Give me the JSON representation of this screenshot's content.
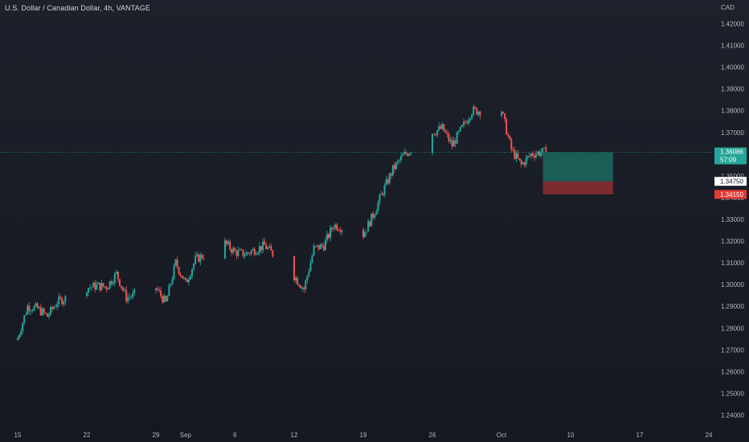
{
  "header": {
    "title": "U.S. Dollar / Canadian Dollar, 4h, VANTAGE"
  },
  "price_scale": {
    "currency": "CAD"
  },
  "tags": {
    "last_price": "1.36086",
    "countdown": "57:09",
    "target_price": "1.34750",
    "stop_price": "1.34150"
  },
  "colors": {
    "background": "#1b1e27",
    "up": "#26a69a",
    "down": "#ef5350",
    "profit_zone": "#1a5e57",
    "loss_zone": "#7d2b30",
    "last_price_tag": "#26a69a",
    "stop_tag": "#e53935"
  },
  "chart_data": {
    "type": "candlestick",
    "title": "U.S. Dollar / Canadian Dollar, 4h, VANTAGE",
    "y_unit": "CAD",
    "ylim": [
      1.235,
      1.425
    ],
    "y_ticks": [
      "1.42000",
      "1.41000",
      "1.40000",
      "1.39000",
      "1.38000",
      "1.37000",
      "1.36000",
      "1.35000",
      "1.34000",
      "1.33000",
      "1.32000",
      "1.31000",
      "1.30000",
      "1.29000",
      "1.28000",
      "1.27000",
      "1.26000",
      "1.25000",
      "1.24000"
    ],
    "x_ticks": [
      {
        "label": "15",
        "date": "2022-08-15"
      },
      {
        "label": "22",
        "date": "2022-08-22"
      },
      {
        "label": "29",
        "date": "2022-08-29"
      },
      {
        "label": "Sep",
        "date": "2022-09-01"
      },
      {
        "label": "6",
        "date": "2022-09-06"
      },
      {
        "label": "12",
        "date": "2022-09-12"
      },
      {
        "label": "19",
        "date": "2022-09-19"
      },
      {
        "label": "26",
        "date": "2022-09-26"
      },
      {
        "label": "Oct",
        "date": "2022-10-03"
      },
      {
        "label": "10",
        "date": "2022-10-10"
      },
      {
        "label": "17",
        "date": "2022-10-17"
      },
      {
        "label": "24",
        "date": "2022-10-24"
      }
    ],
    "series": [
      {
        "date": "2022-08-15",
        "close": 1.2755
      },
      {
        "date": "2022-08-16",
        "close": 1.29
      },
      {
        "date": "2022-08-17",
        "close": 1.289
      },
      {
        "date": "2022-08-18",
        "close": 1.2855
      },
      {
        "date": "2022-08-19",
        "close": 1.292
      },
      {
        "date": "2022-08-22",
        "close": 1.2985
      },
      {
        "date": "2022-08-23",
        "close": 1.2995
      },
      {
        "date": "2022-08-24",
        "close": 1.299
      },
      {
        "date": "2022-08-25",
        "close": 1.305
      },
      {
        "date": "2022-08-26",
        "close": 1.294
      },
      {
        "date": "2022-08-29",
        "close": 1.2985
      },
      {
        "date": "2022-08-30",
        "close": 1.2915
      },
      {
        "date": "2022-08-31",
        "close": 1.31
      },
      {
        "date": "2022-09-01",
        "close": 1.3005
      },
      {
        "date": "2022-09-02",
        "close": 1.3115
      },
      {
        "date": "2022-09-05",
        "close": 1.319
      },
      {
        "date": "2022-09-06",
        "close": 1.315
      },
      {
        "date": "2022-09-07",
        "close": 1.314
      },
      {
        "date": "2022-09-08",
        "close": 1.316
      },
      {
        "date": "2022-09-09",
        "close": 1.318
      },
      {
        "date": "2022-09-12",
        "close": 1.304
      },
      {
        "date": "2022-09-13",
        "close": 1.298
      },
      {
        "date": "2022-09-14",
        "close": 1.3165
      },
      {
        "date": "2022-09-15",
        "close": 1.318
      },
      {
        "date": "2022-09-16",
        "close": 1.3275
      },
      {
        "date": "2022-09-19",
        "close": 1.323
      },
      {
        "date": "2022-09-20",
        "close": 1.332
      },
      {
        "date": "2022-09-21",
        "close": 1.343
      },
      {
        "date": "2022-09-22",
        "close": 1.353
      },
      {
        "date": "2022-09-23",
        "close": 1.359
      },
      {
        "date": "2022-09-26",
        "close": 1.37
      },
      {
        "date": "2022-09-27",
        "close": 1.372
      },
      {
        "date": "2022-09-28",
        "close": 1.364
      },
      {
        "date": "2022-09-29",
        "close": 1.372
      },
      {
        "date": "2022-09-30",
        "close": 1.38
      },
      {
        "date": "2022-10-03",
        "close": 1.38
      },
      {
        "date": "2022-10-04",
        "close": 1.362
      },
      {
        "date": "2022-10-05",
        "close": 1.355
      },
      {
        "date": "2022-10-06",
        "close": 1.36
      },
      {
        "date": "2022-10-07",
        "close": 1.3609
      }
    ],
    "position": {
      "entry": 1.3609,
      "target": 1.3475,
      "stop": 1.3415
    }
  }
}
